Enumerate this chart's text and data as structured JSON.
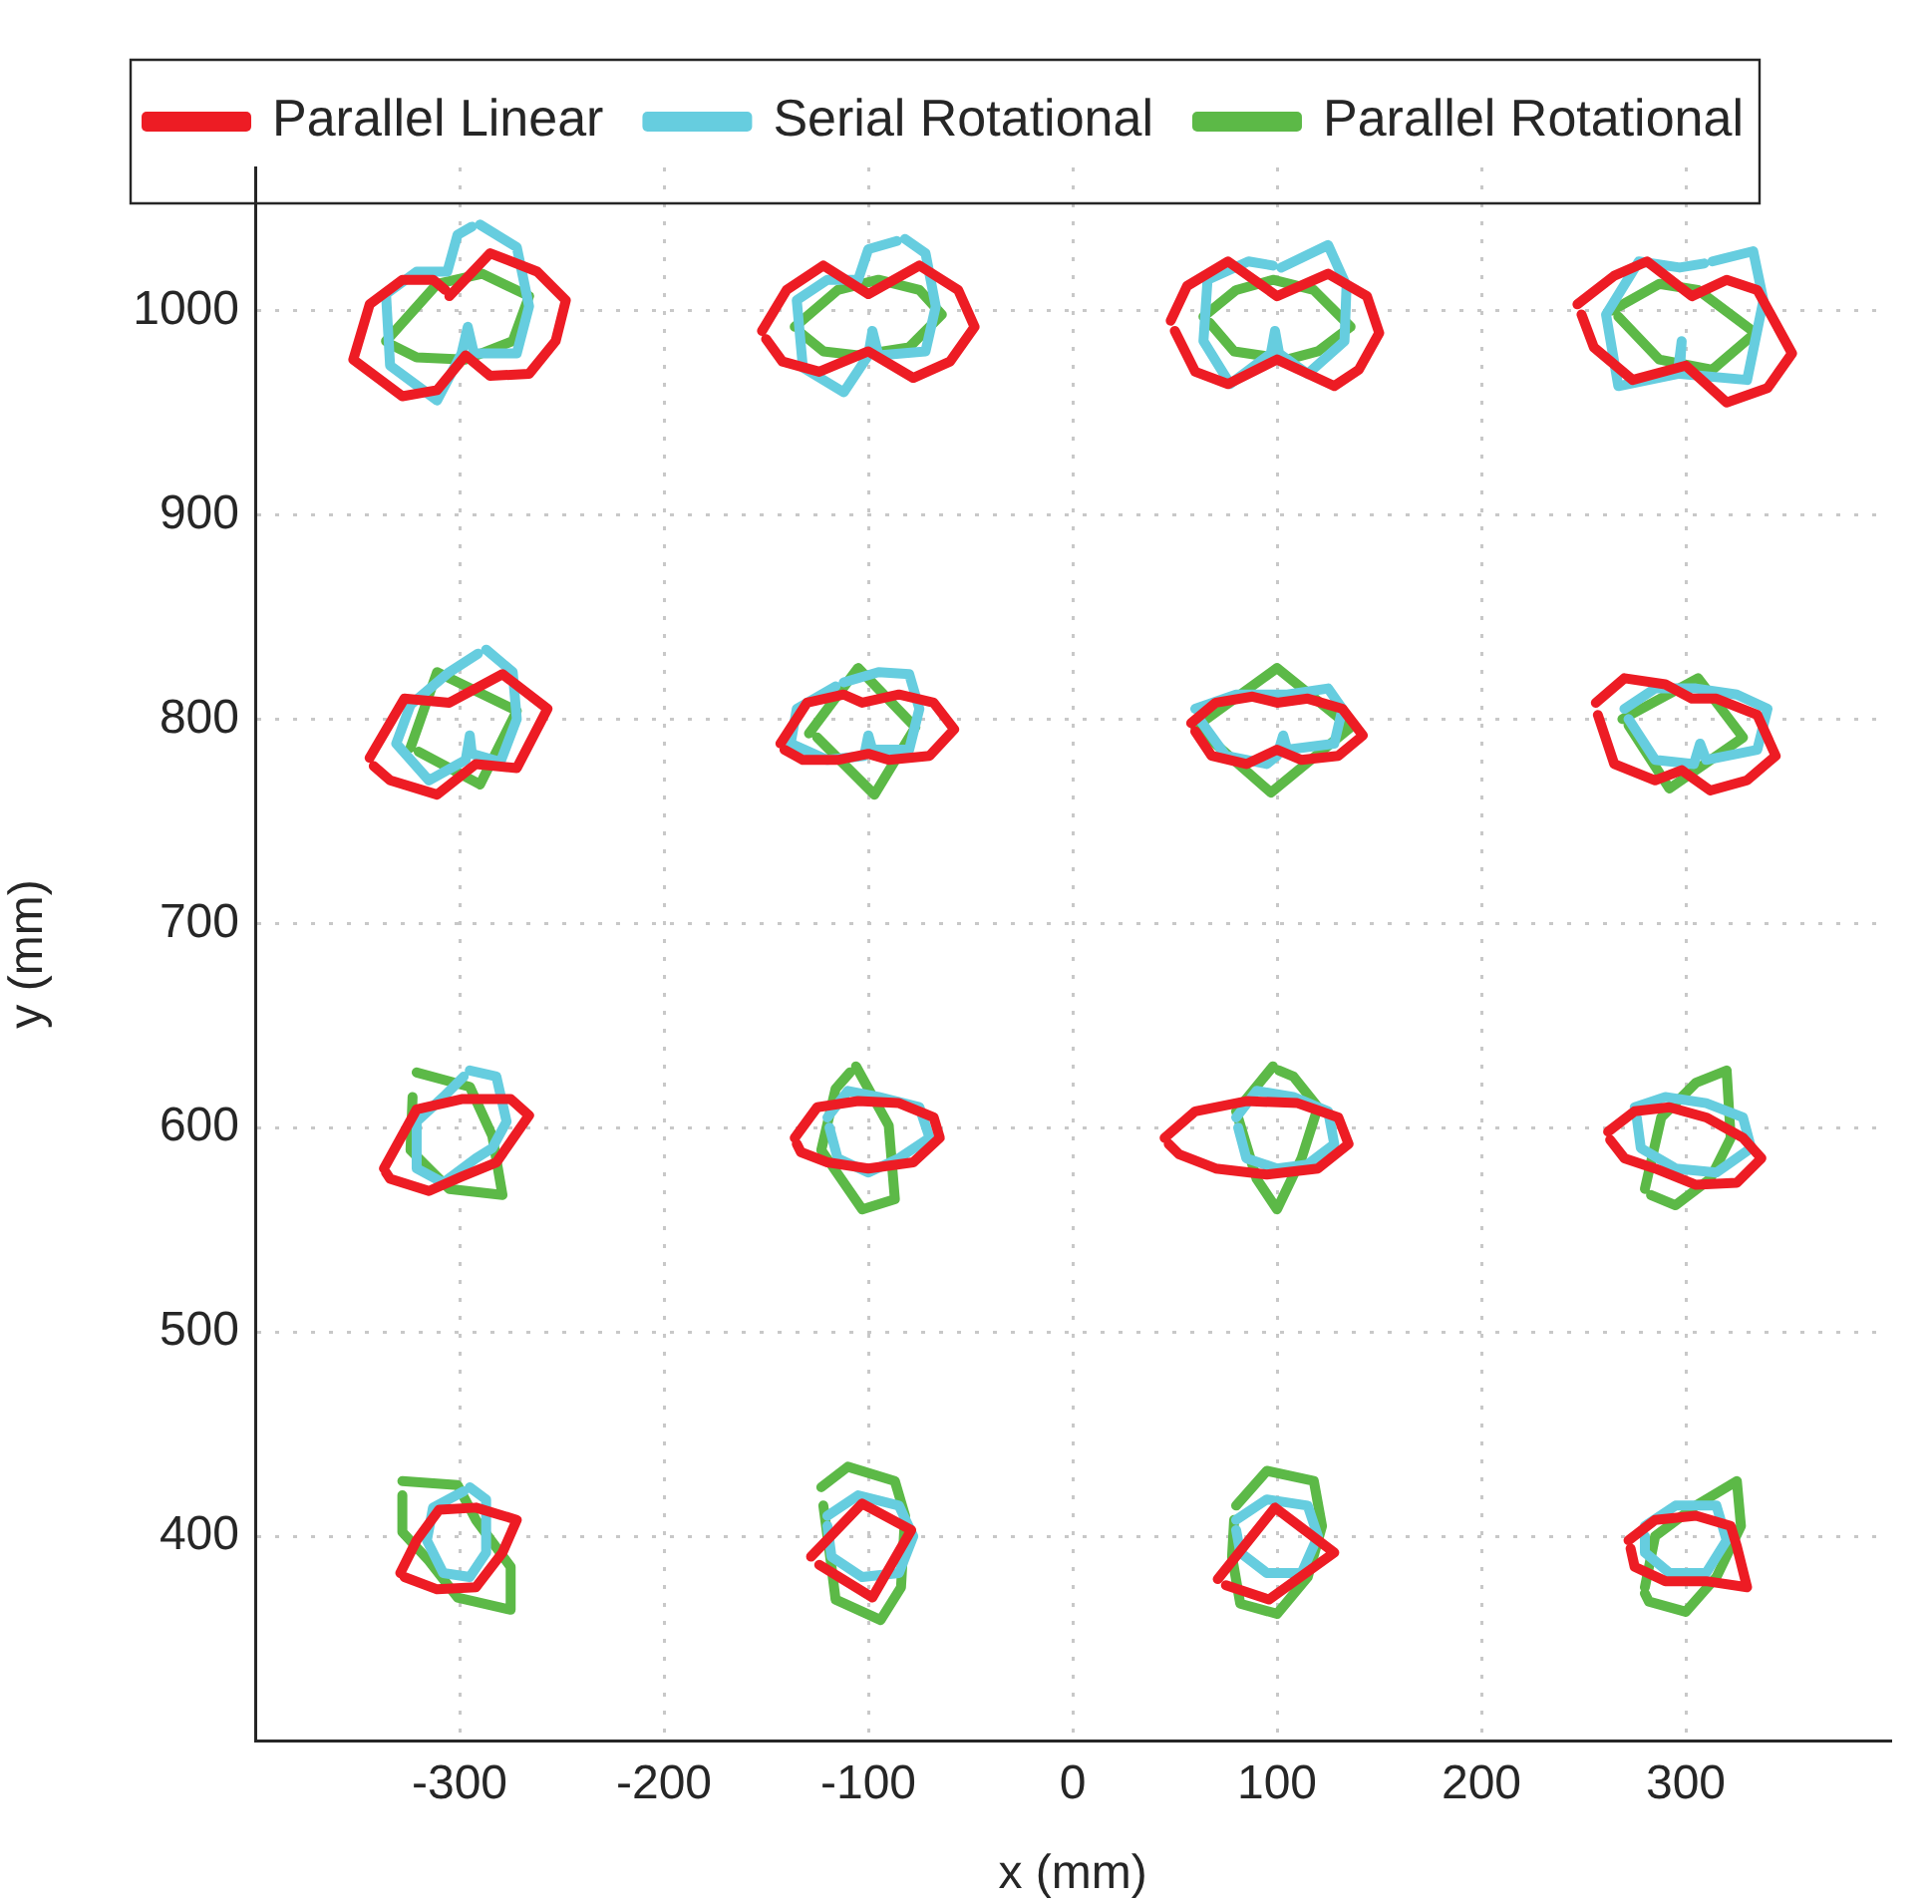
{
  "chart_data": {
    "type": "line",
    "xlabel": "x (mm)",
    "ylabel": "y (mm)",
    "xlim": [
      -400,
      400
    ],
    "xticks": [
      -300,
      -200,
      -100,
      0,
      100,
      200,
      300
    ],
    "ylim": [
      300,
      1070
    ],
    "yticks": [
      400,
      500,
      600,
      700,
      800,
      900,
      1000
    ],
    "grid": true,
    "legend": "top",
    "marker": "none",
    "line_style": "solid",
    "series": [
      {
        "name": "Parallel Linear",
        "color": "#ed1c24",
        "x": [
          -305,
          -285,
          -262,
          -248,
          -253,
          -266,
          -285,
          -297,
          -311,
          -328,
          -352,
          -344,
          -328,
          -313,
          -307
        ],
        "values": [
          1007,
          1028,
          1019,
          1005,
          985,
          969,
          968,
          978,
          961,
          958,
          976,
          1003,
          1015,
          1015,
          1010
        ]
      },
      {
        "color": "#ed1c24",
        "x": [
          -152,
          -140,
          -122,
          -100,
          -75,
          -56,
          -48,
          -60,
          -78,
          -100,
          -124,
          -142,
          -150
        ],
        "values": [
          990,
          1010,
          1022,
          1008,
          1022,
          1010,
          992,
          975,
          967,
          980,
          970,
          975,
          986
        ]
      },
      {
        "color": "#ed1c24",
        "x": [
          48,
          56,
          76,
          100,
          125,
          144,
          150,
          140,
          128,
          100,
          76,
          60,
          50
        ],
        "values": [
          995,
          1012,
          1024,
          1007,
          1018,
          1007,
          989,
          971,
          963,
          976,
          964,
          970,
          990
        ]
      },
      {
        "color": "#ed1c24",
        "x": [
          247,
          265,
          281,
          303,
          320,
          335,
          352,
          340,
          320,
          300,
          274,
          255,
          249
        ],
        "values": [
          1003,
          1017,
          1024,
          1007,
          1015,
          1010,
          979,
          962,
          955,
          973,
          966,
          982,
          998
        ]
      },
      {
        "color": "#ed1c24",
        "x": [
          -344,
          -327,
          -305,
          -279,
          -257,
          -272,
          -292,
          -311,
          -334,
          -342
        ],
        "values": [
          781,
          810,
          808,
          822,
          805,
          776,
          778,
          763,
          770,
          777
        ]
      },
      {
        "color": "#ed1c24",
        "x": [
          -143,
          -130,
          -112,
          -103,
          -85,
          -68,
          -58,
          -70,
          -90,
          -100,
          -115,
          -132,
          -141
        ],
        "values": [
          788,
          808,
          812,
          808,
          812,
          808,
          795,
          782,
          780,
          783,
          780,
          780,
          785
        ]
      },
      {
        "color": "#ed1c24",
        "x": [
          58,
          70,
          88,
          100,
          115,
          132,
          142,
          130,
          112,
          100,
          85,
          68,
          60
        ],
        "values": [
          798,
          808,
          811,
          808,
          810,
          805,
          792,
          782,
          780,
          785,
          778,
          782,
          794
        ]
      },
      {
        "color": "#ed1c24",
        "x": [
          256,
          270,
          290,
          303,
          315,
          335,
          344,
          330,
          312,
          298,
          285,
          265,
          257
        ],
        "values": [
          808,
          820,
          817,
          810,
          810,
          802,
          782,
          770,
          765,
          775,
          770,
          778,
          802
        ]
      },
      {
        "color": "#ed1c24",
        "x": [
          -337,
          -321,
          -299,
          -275,
          -266,
          -282,
          -299,
          -315,
          -334,
          -336
        ],
        "values": [
          580,
          609,
          614,
          614,
          606,
          583,
          576,
          569,
          575,
          578
        ]
      },
      {
        "color": "#ed1c24",
        "x": [
          -136,
          -125,
          -105,
          -85,
          -68,
          -65,
          -78,
          -100,
          -120,
          -133,
          -135
        ],
        "values": [
          595,
          610,
          613,
          612,
          605,
          595,
          583,
          580,
          583,
          588,
          592
        ]
      },
      {
        "color": "#ed1c24",
        "x": [
          45,
          60,
          85,
          110,
          130,
          135,
          120,
          95,
          70,
          52,
          47
        ],
        "values": [
          595,
          608,
          613,
          612,
          605,
          592,
          580,
          577,
          580,
          587,
          592
        ]
      },
      {
        "color": "#ed1c24",
        "x": [
          262,
          275,
          292,
          310,
          328,
          337,
          325,
          305,
          285,
          270,
          263
        ],
        "values": [
          598,
          608,
          610,
          605,
          595,
          585,
          573,
          572,
          580,
          585,
          594
        ]
      },
      {
        "color": "#ed1c24",
        "x": [
          -329,
          -321,
          -310,
          -292,
          -272,
          -279,
          -292,
          -311,
          -327
        ],
        "values": [
          382,
          398,
          413,
          414,
          408,
          392,
          375,
          374,
          380
        ]
      },
      {
        "color": "#ed1c24",
        "x": [
          -128,
          -103,
          -79,
          -98,
          -124
        ],
        "values": [
          390,
          416,
          403,
          370,
          386
        ]
      },
      {
        "color": "#ed1c24",
        "x": [
          71,
          99,
          128,
          96,
          75
        ],
        "values": [
          379,
          414,
          392,
          369,
          376
        ]
      },
      {
        "color": "#ed1c24",
        "x": [
          272,
          285,
          305,
          322,
          325,
          330,
          310,
          290,
          275,
          273
        ],
        "values": [
          398,
          408,
          410,
          405,
          395,
          375,
          378,
          378,
          385,
          394
        ]
      },
      {
        "name": "Serial Rotational",
        "color": "#66cddf",
        "x": [
          -290,
          -272,
          -266,
          -272,
          -293,
          -296,
          -299,
          -311,
          -334,
          -336,
          -321,
          -306,
          -301,
          -294
        ],
        "values": [
          1042,
          1031,
          1002,
          979,
          979,
          992,
          979,
          956,
          973,
          1008,
          1019,
          1019,
          1037,
          1041
        ]
      },
      {
        "color": "#66cddf",
        "x": [
          -82,
          -72,
          -67,
          -72,
          -95,
          -98,
          -100,
          -112,
          -132,
          -135,
          -120,
          -105,
          -100,
          -86
        ],
        "values": [
          1035,
          1028,
          1002,
          980,
          978,
          990,
          978,
          960,
          972,
          1005,
          1015,
          1015,
          1030,
          1034
        ]
      },
      {
        "color": "#66cddf",
        "x": [
          102,
          125,
          134,
          133,
          115,
          101,
          99,
          97,
          77,
          64,
          66,
          86,
          98
        ],
        "values": [
          1021,
          1032,
          1012,
          985,
          969,
          979,
          990,
          979,
          964,
          985,
          1015,
          1024,
          1022
        ]
      },
      {
        "color": "#66cddf",
        "x": [
          313,
          333,
          338,
          330,
          297,
          298,
          296,
          267,
          261,
          277,
          297,
          309
        ],
        "values": [
          1024,
          1029,
          1005,
          966,
          969,
          985,
          969,
          963,
          998,
          1024,
          1021,
          1023
        ]
      },
      {
        "color": "#66cddf",
        "x": [
          -287,
          -274,
          -272,
          -280,
          -294,
          -295,
          -297,
          -315,
          -331,
          -324,
          -305,
          -291
        ],
        "values": [
          834,
          823,
          800,
          779,
          783,
          792,
          780,
          770,
          788,
          807,
          823,
          832
        ]
      },
      {
        "color": "#66cddf",
        "x": [
          -112,
          -95,
          -80,
          -75,
          -80,
          -98,
          -100,
          -102,
          -120,
          -138,
          -135,
          -116
        ],
        "values": [
          818,
          823,
          822,
          805,
          785,
          785,
          792,
          782,
          780,
          788,
          805,
          816
        ]
      },
      {
        "color": "#66cddf",
        "x": [
          60,
          80,
          105,
          125,
          132,
          128,
          105,
          103,
          100,
          95,
          75,
          62
        ],
        "values": [
          805,
          812,
          812,
          815,
          805,
          788,
          785,
          792,
          782,
          778,
          782,
          800
        ]
      },
      {
        "color": "#66cddf",
        "x": [
          270,
          285,
          305,
          325,
          340,
          335,
          310,
          307,
          304,
          285,
          272
        ],
        "values": [
          805,
          815,
          815,
          812,
          805,
          785,
          780,
          788,
          778,
          780,
          800
        ]
      },
      {
        "color": "#66cddf",
        "x": [
          -295,
          -282,
          -277,
          -284,
          -292,
          -308,
          -321,
          -321,
          -308,
          -298
        ],
        "values": [
          628,
          625,
          603,
          590,
          585,
          573,
          580,
          603,
          615,
          625
        ]
      },
      {
        "color": "#66cddf",
        "x": [
          -120,
          -110,
          -95,
          -75,
          -70,
          -85,
          -100,
          -115,
          -119
        ],
        "values": [
          605,
          618,
          615,
          610,
          595,
          585,
          578,
          585,
          600
        ]
      },
      {
        "color": "#66cddf",
        "x": [
          80,
          90,
          108,
          125,
          128,
          115,
          100,
          85,
          81
        ],
        "values": [
          605,
          618,
          615,
          608,
          592,
          582,
          580,
          585,
          600
        ]
      },
      {
        "color": "#66cddf",
        "x": [
          275,
          290,
          310,
          328,
          332,
          315,
          295,
          278,
          276
        ],
        "values": [
          610,
          615,
          612,
          605,
          590,
          578,
          580,
          590,
          605
        ]
      },
      {
        "color": "#66cddf",
        "x": [
          -295,
          -287,
          -287,
          -295,
          -308,
          -316,
          -313,
          -298
        ],
        "values": [
          424,
          418,
          392,
          380,
          382,
          398,
          414,
          422
        ]
      },
      {
        "color": "#66cddf",
        "x": [
          -120,
          -105,
          -85,
          -78,
          -85,
          -103,
          -118,
          -120
        ],
        "values": [
          410,
          420,
          415,
          400,
          382,
          380,
          390,
          405
        ]
      },
      {
        "color": "#66cddf",
        "x": [
          80,
          95,
          115,
          120,
          112,
          95,
          82,
          80
        ],
        "values": [
          408,
          418,
          415,
          400,
          382,
          382,
          392,
          403
        ]
      },
      {
        "color": "#66cddf",
        "x": [
          280,
          295,
          315,
          320,
          310,
          292,
          280,
          280
        ],
        "values": [
          405,
          415,
          415,
          398,
          382,
          382,
          392,
          400
        ]
      },
      {
        "name": "Parallel Rotational",
        "color": "#5cb947",
        "x": [
          -336,
          -311,
          -289,
          -266,
          -274,
          -297,
          -321,
          -333
        ],
        "values": [
          985,
          1013,
          1018,
          1007,
          985,
          976,
          977,
          983
        ]
      },
      {
        "color": "#5cb947",
        "x": [
          -136,
          -115,
          -95,
          -75,
          -64,
          -80,
          -105,
          -122,
          -133
        ],
        "values": [
          992,
          1010,
          1015,
          1010,
          998,
          982,
          978,
          980,
          989
        ]
      },
      {
        "color": "#5cb947",
        "x": [
          64,
          80,
          98,
          118,
          136,
          120,
          105,
          79,
          67
        ],
        "values": [
          997,
          1010,
          1015,
          1010,
          992,
          980,
          976,
          980,
          994
        ]
      },
      {
        "color": "#5cb947",
        "x": [
          264,
          287,
          306,
          334,
          313,
          287,
          267
        ],
        "values": [
          1000,
          1013,
          1010,
          989,
          971,
          976,
          997
        ]
      },
      {
        "color": "#5cb947",
        "x": [
          -324,
          -311,
          -272,
          -290,
          -320
        ],
        "values": [
          786,
          823,
          804,
          768,
          784
        ]
      },
      {
        "color": "#5cb947",
        "x": [
          -129,
          -105,
          -77,
          -97,
          -125
        ],
        "values": [
          793,
          825,
          796,
          763,
          791
        ]
      },
      {
        "color": "#5cb947",
        "x": [
          60,
          100,
          136,
          97,
          64
        ],
        "values": [
          796,
          825,
          796,
          764,
          793
        ]
      },
      {
        "color": "#5cb947",
        "x": [
          269,
          306,
          328,
          292,
          272
        ],
        "values": [
          800,
          820,
          791,
          766,
          797
        ]
      },
      {
        "color": "#5cb947",
        "x": [
          -321,
          -295,
          -284,
          -279,
          -305,
          -324,
          -323
        ],
        "values": [
          627,
          620,
          596,
          567,
          570,
          589,
          615
        ]
      },
      {
        "color": "#5cb947",
        "x": [
          -106,
          -90,
          -87,
          -103,
          -123,
          -116,
          -109
        ],
        "values": [
          630,
          601,
          565,
          560,
          589,
          619,
          627
        ]
      },
      {
        "color": "#5cb947",
        "x": [
          98,
          80,
          90,
          100,
          112,
          120,
          108,
          101
        ],
        "values": [
          630,
          608,
          575,
          560,
          585,
          610,
          625,
          628
        ]
      },
      {
        "color": "#5cb947",
        "x": [
          280,
          288,
          305,
          320,
          322,
          312,
          295,
          283
        ],
        "values": [
          570,
          605,
          622,
          628,
          595,
          575,
          562,
          567
        ]
      },
      {
        "color": "#5cb947",
        "x": [
          -328,
          -301,
          -292,
          -275,
          -275,
          -301,
          -315,
          -328,
          -328
        ],
        "values": [
          427,
          425,
          408,
          385,
          364,
          370,
          388,
          402,
          420
        ]
      },
      {
        "color": "#5cb947",
        "x": [
          -123,
          -110,
          -87,
          -82,
          -84,
          -94,
          -116,
          -118,
          -122
        ],
        "values": [
          424,
          434,
          427,
          410,
          375,
          359,
          369,
          385,
          415
        ]
      },
      {
        "color": "#5cb947",
        "x": [
          80,
          95,
          118,
          122,
          115,
          100,
          82,
          78,
          79
        ],
        "values": [
          415,
          432,
          427,
          405,
          380,
          362,
          367,
          390,
          408
        ]
      },
      {
        "color": "#5cb947",
        "x": [
          280,
          285,
          305,
          325,
          327,
          315,
          300,
          282,
          280
        ],
        "values": [
          375,
          400,
          415,
          427,
          405,
          380,
          363,
          368,
          372
        ]
      }
    ]
  }
}
